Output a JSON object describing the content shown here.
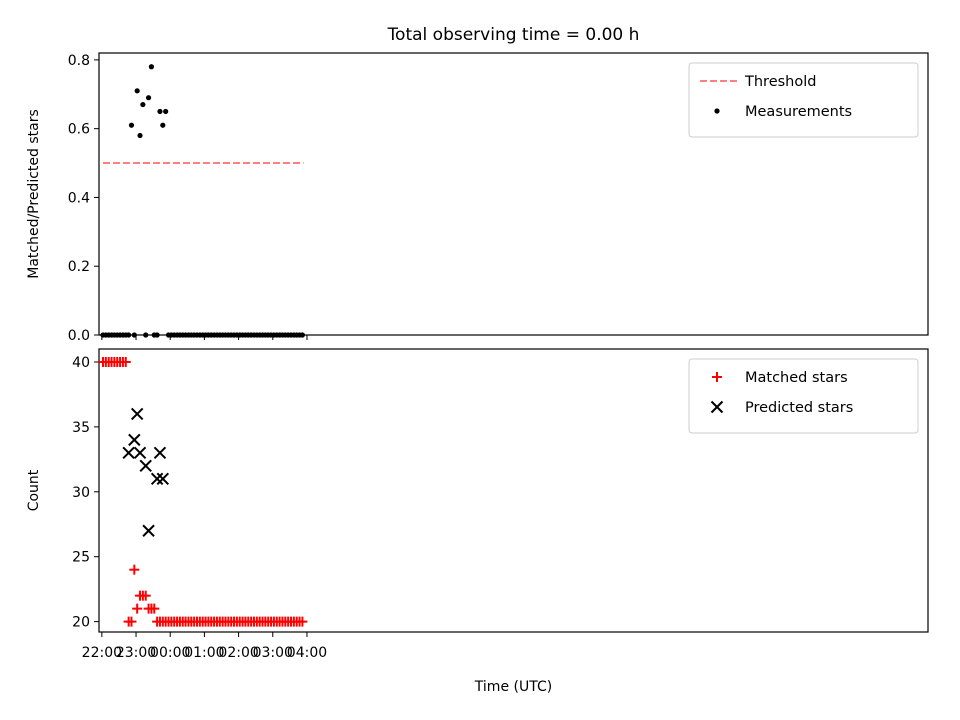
{
  "chart_data": [
    {
      "type": "scatter",
      "title": "Total observing time = 0.00 h",
      "xlabel": "",
      "ylabel": "Matched/Predicted stars",
      "ylim": [
        0,
        0.82
      ],
      "yticks": [
        "0.0",
        "0.2",
        "0.4",
        "0.6",
        "0.8"
      ],
      "xlim_minutes": [
        -5,
        1450
      ],
      "xtick_labels": [
        "22:00",
        "23:00",
        "00:00",
        "01:00",
        "02:00",
        "03:00",
        "04:00"
      ],
      "legend_position": "upper right",
      "threshold": {
        "name": "Threshold",
        "value": 0.5,
        "x_start": "22:02",
        "x_end": "03:54",
        "color": "#ff7f7f"
      },
      "series": [
        {
          "name": "Measurements",
          "color": "#000000",
          "x": [
            "22:02",
            "22:07",
            "22:12",
            "22:17",
            "22:22",
            "22:27",
            "22:32",
            "22:37",
            "22:42",
            "22:47",
            "22:52",
            "22:57",
            "23:02",
            "23:07",
            "23:12",
            "23:17",
            "23:22",
            "23:27",
            "23:32",
            "23:37",
            "23:42",
            "23:47",
            "23:52",
            "23:57",
            "00:02",
            "00:07",
            "00:12",
            "00:17",
            "00:22",
            "00:27",
            "00:32",
            "00:37",
            "00:42",
            "00:47",
            "00:52",
            "00:57",
            "01:02",
            "01:07",
            "01:12",
            "01:17",
            "01:22",
            "01:27",
            "01:32",
            "01:37",
            "01:42",
            "01:47",
            "01:52",
            "01:57",
            "02:02",
            "02:07",
            "02:12",
            "02:17",
            "02:22",
            "02:27",
            "02:32",
            "02:37",
            "02:42",
            "02:47",
            "02:52",
            "02:57",
            "03:02",
            "03:07",
            "03:12",
            "03:17",
            "03:22",
            "03:27",
            "03:32",
            "03:37",
            "03:42",
            "03:47",
            "03:52"
          ],
          "y": [
            0,
            0,
            0,
            0,
            0,
            0,
            0,
            0,
            0,
            0,
            0.61,
            0,
            0.71,
            0.58,
            0.67,
            0,
            0.69,
            0.78,
            0,
            0,
            0.65,
            0.61,
            0.65,
            0,
            0,
            0,
            0,
            0,
            0,
            0,
            0,
            0,
            0,
            0,
            0,
            0,
            0,
            0,
            0,
            0,
            0,
            0,
            0,
            0,
            0,
            0,
            0,
            0,
            0,
            0,
            0,
            0,
            0,
            0,
            0,
            0,
            0,
            0,
            0,
            0,
            0,
            0,
            0,
            0,
            0,
            0,
            0,
            0,
            0,
            0,
            0
          ]
        }
      ]
    },
    {
      "type": "scatter",
      "title": "",
      "xlabel": "Time (UTC)",
      "ylabel": "Count",
      "ylim": [
        19.2,
        41.0
      ],
      "yticks": [
        "20",
        "25",
        "30",
        "35",
        "40"
      ],
      "xlim_minutes": [
        -5,
        1450
      ],
      "xtick_labels": [
        "22:00",
        "23:00",
        "00:00",
        "01:00",
        "02:00",
        "03:00",
        "04:00"
      ],
      "legend_position": "upper right",
      "series": [
        {
          "name": "Matched stars",
          "marker": "plus",
          "color": "#ff0000",
          "x": [
            "22:02",
            "22:07",
            "22:12",
            "22:17",
            "22:22",
            "22:27",
            "22:32",
            "22:37",
            "22:42",
            "22:47",
            "22:52",
            "22:57",
            "23:02",
            "23:07",
            "23:12",
            "23:17",
            "23:22",
            "23:27",
            "23:32",
            "23:37",
            "23:42",
            "23:47",
            "23:52",
            "23:57",
            "00:02",
            "00:07",
            "00:12",
            "00:17",
            "00:22",
            "00:27",
            "00:32",
            "00:37",
            "00:42",
            "00:47",
            "00:52",
            "00:57",
            "01:02",
            "01:07",
            "01:12",
            "01:17",
            "01:22",
            "01:27",
            "01:32",
            "01:37",
            "01:42",
            "01:47",
            "01:52",
            "01:57",
            "02:02",
            "02:07",
            "02:12",
            "02:17",
            "02:22",
            "02:27",
            "02:32",
            "02:37",
            "02:42",
            "02:47",
            "02:52",
            "02:57",
            "03:02",
            "03:07",
            "03:12",
            "03:17",
            "03:22",
            "03:27",
            "03:32",
            "03:37",
            "03:42",
            "03:47",
            "03:52"
          ],
          "y": [
            40,
            40,
            40,
            40,
            40,
            40,
            40,
            40,
            40,
            20,
            20,
            24,
            21,
            22,
            22,
            22,
            21,
            21,
            21,
            20,
            20,
            20,
            20,
            20,
            20,
            20,
            20,
            20,
            20,
            20,
            20,
            20,
            20,
            20,
            20,
            20,
            20,
            20,
            20,
            20,
            20,
            20,
            20,
            20,
            20,
            20,
            20,
            20,
            20,
            20,
            20,
            20,
            20,
            20,
            20,
            20,
            20,
            20,
            20,
            20,
            20,
            20,
            20,
            20,
            20,
            20,
            20,
            20,
            20,
            20,
            20
          ]
        },
        {
          "name": "Predicted stars",
          "marker": "x",
          "color": "#000000",
          "x": [
            "22:47",
            "22:57",
            "23:02",
            "23:07",
            "23:17",
            "23:22",
            "23:37",
            "23:42",
            "23:47"
          ],
          "y": [
            33,
            34,
            36,
            33,
            32,
            27,
            31,
            33,
            31
          ]
        }
      ]
    }
  ]
}
